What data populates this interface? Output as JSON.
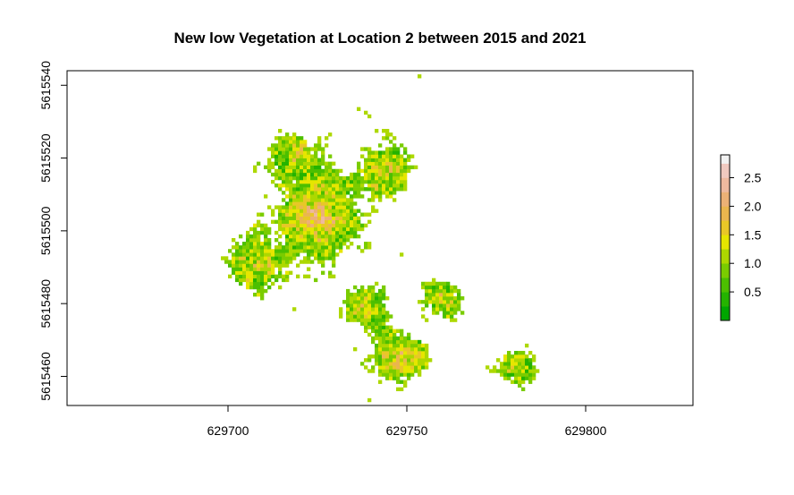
{
  "chart_data": {
    "type": "heatmap",
    "title": "New low Vegetation at Location 2 between 2015 and 2021",
    "xlabel": "",
    "ylabel": "",
    "x_ticks": [
      629700,
      629750,
      629800
    ],
    "y_ticks": [
      5615460,
      5615480,
      5615500,
      5615520,
      5615540
    ],
    "x_tick_labels": [
      "629700",
      "629750",
      "629800"
    ],
    "y_tick_labels": [
      "5615460",
      "5615480",
      "5615500",
      "5615520",
      "5615540"
    ],
    "xlim": [
      629655,
      629830
    ],
    "ylim": [
      5615452,
      5615544
    ],
    "raster_extent": {
      "xmin": 629698,
      "xmax": 629788,
      "ymin": 5615452,
      "ymax": 5615544
    },
    "cell_size": 1,
    "value_range": [
      0,
      2.9
    ],
    "color_breaks": [
      0,
      0.25,
      0.5,
      0.75,
      1.0,
      1.25,
      1.5,
      1.75,
      2.0,
      2.25,
      2.5,
      2.75,
      2.9
    ],
    "color_ramp": [
      "#00A600",
      "#24B300",
      "#4CBF00",
      "#7ACC00",
      "#ADD800",
      "#E6E600",
      "#E8C727",
      "#EAB64E",
      "#ECB176",
      "#EEB99F",
      "#F0C9C0",
      "#F2F2F2"
    ],
    "legend": {
      "position": "right",
      "tick_values": [
        0.5,
        1.0,
        1.5,
        2.0,
        2.5
      ],
      "tick_labels": [
        "0.5",
        "1.0",
        "1.5",
        "2.0",
        "2.5"
      ]
    }
  }
}
